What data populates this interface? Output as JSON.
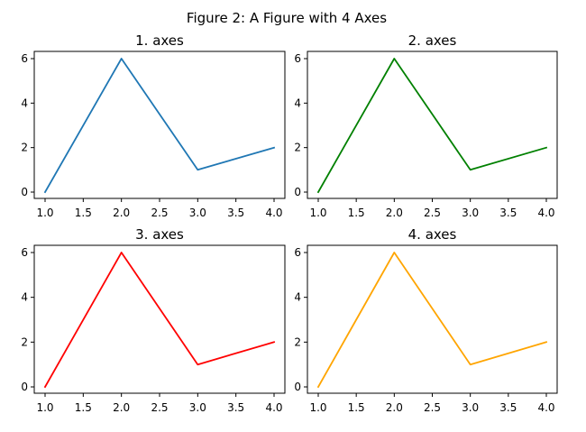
{
  "figure": {
    "title": "Figure 2: A Figure with 4 Axes"
  },
  "chart_data": [
    {
      "type": "line",
      "title": "1. axes",
      "xlabel": "",
      "ylabel": "",
      "xlim": [
        1.0,
        4.0
      ],
      "ylim": [
        0,
        6
      ],
      "xticks": [
        "1.0",
        "1.5",
        "2.0",
        "2.5",
        "3.0",
        "3.5",
        "4.0"
      ],
      "yticks": [
        "0",
        "2",
        "4",
        "6"
      ],
      "grid": false,
      "series": [
        {
          "x": [
            1,
            2,
            3,
            4
          ],
          "values": [
            0,
            6,
            1,
            2
          ],
          "color": "#1f77b4"
        }
      ]
    },
    {
      "type": "line",
      "title": "2. axes",
      "xlabel": "",
      "ylabel": "",
      "xlim": [
        1.0,
        4.0
      ],
      "ylim": [
        0,
        6
      ],
      "xticks": [
        "1.0",
        "1.5",
        "2.0",
        "2.5",
        "3.0",
        "3.5",
        "4.0"
      ],
      "yticks": [
        "0",
        "2",
        "4",
        "6"
      ],
      "grid": false,
      "series": [
        {
          "x": [
            1,
            2,
            3,
            4
          ],
          "values": [
            0,
            6,
            1,
            2
          ],
          "color": "#008000"
        }
      ]
    },
    {
      "type": "line",
      "title": "3. axes",
      "xlabel": "",
      "ylabel": "",
      "xlim": [
        1.0,
        4.0
      ],
      "ylim": [
        0,
        6
      ],
      "xticks": [
        "1.0",
        "1.5",
        "2.0",
        "2.5",
        "3.0",
        "3.5",
        "4.0"
      ],
      "yticks": [
        "0",
        "2",
        "4",
        "6"
      ],
      "grid": false,
      "series": [
        {
          "x": [
            1,
            2,
            3,
            4
          ],
          "values": [
            0,
            6,
            1,
            2
          ],
          "color": "#ff0000"
        }
      ]
    },
    {
      "type": "line",
      "title": "4. axes",
      "xlabel": "",
      "ylabel": "",
      "xlim": [
        1.0,
        4.0
      ],
      "ylim": [
        0,
        6
      ],
      "xticks": [
        "1.0",
        "1.5",
        "2.0",
        "2.5",
        "3.0",
        "3.5",
        "4.0"
      ],
      "yticks": [
        "0",
        "2",
        "4",
        "6"
      ],
      "grid": false,
      "series": [
        {
          "x": [
            1,
            2,
            3,
            4
          ],
          "values": [
            0,
            6,
            1,
            2
          ],
          "color": "#ffa500"
        }
      ]
    }
  ]
}
